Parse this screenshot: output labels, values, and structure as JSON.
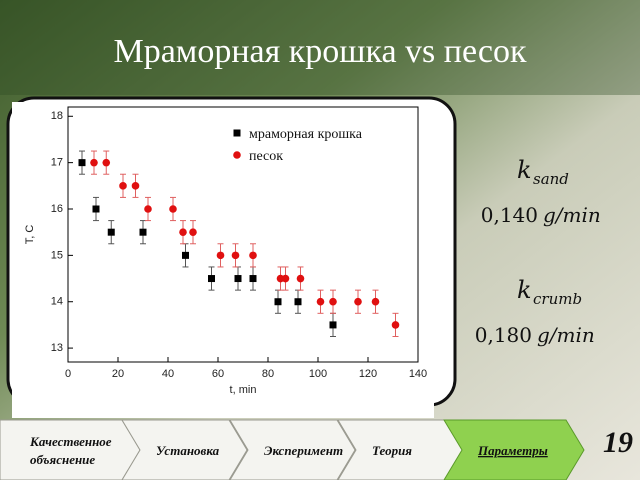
{
  "slide": {
    "title": "Мраморная крошка vs песок",
    "formulas": [
      {
        "symbol": "k",
        "subscript": "sand",
        "value": "0,140",
        "unit": "g/min"
      },
      {
        "symbol": "k",
        "subscript": "crumb",
        "value": "0,180",
        "unit": "g/min"
      }
    ],
    "tabs": [
      {
        "label": [
          "Качественное",
          "объяснение"
        ],
        "active": false
      },
      {
        "label": [
          "Установка"
        ],
        "active": false
      },
      {
        "label": [
          "Эксперимент"
        ],
        "active": false
      },
      {
        "label": [
          "Теория"
        ],
        "active": false
      },
      {
        "label": [
          "Параметры"
        ],
        "active": true
      }
    ],
    "page_number": "19"
  },
  "chart_data": {
    "type": "scatter",
    "x_label": "t, min",
    "y_label": "T, C",
    "xlim": [
      0,
      140
    ],
    "ylim": [
      12.7,
      18.2
    ],
    "xticks": [
      0,
      20,
      40,
      60,
      80,
      100,
      120,
      140
    ],
    "yticks": [
      13,
      14,
      15,
      16,
      17,
      18
    ],
    "legend": "top-right",
    "series": [
      {
        "name": "мраморная крошка",
        "color": "#000000",
        "marker": "square",
        "x": [
          5.6,
          11.2,
          17.3,
          30,
          47,
          57.4,
          68,
          74,
          84,
          92,
          106
        ],
        "values": [
          17,
          16,
          15.5,
          15.5,
          15,
          14.5,
          14.5,
          14.5,
          14,
          14,
          13.5
        ],
        "errors": [
          0.25,
          0.25,
          0.25,
          0.25,
          0.25,
          0.25,
          0.25,
          0.25,
          0.25,
          0.25,
          0.25
        ]
      },
      {
        "name": "песок",
        "color": "#e01010",
        "marker": "circle",
        "x": [
          10.4,
          15.3,
          22,
          27,
          32,
          42,
          46,
          50,
          61,
          67,
          74,
          85,
          87,
          93,
          101,
          106,
          116,
          123,
          131
        ],
        "values": [
          17,
          17,
          16.5,
          16.5,
          16,
          16,
          15.5,
          15.5,
          15,
          15,
          15,
          14.5,
          14.5,
          14.5,
          14,
          14,
          14,
          14,
          13.5
        ],
        "errors": [
          0.25,
          0.25,
          0.25,
          0.25,
          0.25,
          0.25,
          0.25,
          0.25,
          0.25,
          0.25,
          0.25,
          0.25,
          0.25,
          0.25,
          0.25,
          0.25,
          0.25,
          0.25,
          0.25
        ]
      }
    ]
  }
}
